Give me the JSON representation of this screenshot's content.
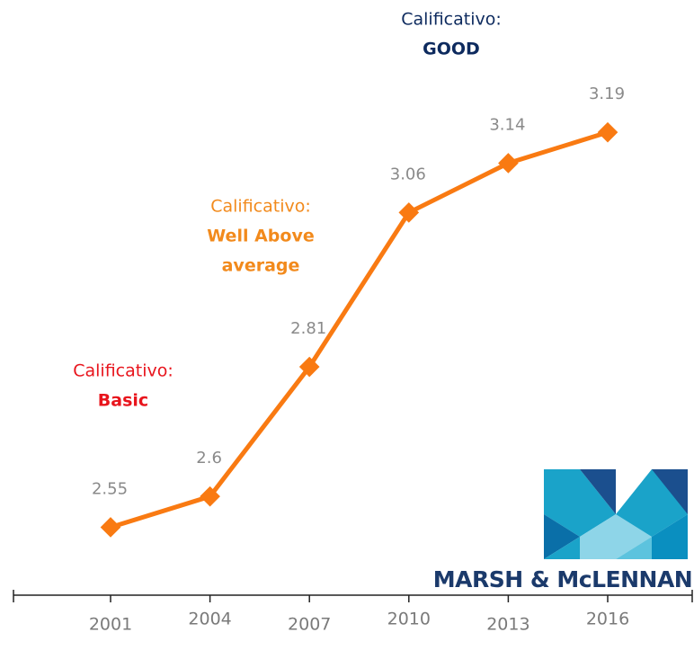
{
  "chart_data": {
    "type": "line",
    "categories": [
      "2001",
      "2004",
      "2007",
      "2010",
      "2013",
      "2016"
    ],
    "series": [
      {
        "name": null,
        "color": "#f97a12",
        "values": [
          2.55,
          2.6,
          2.81,
          3.06,
          3.14,
          3.19
        ]
      }
    ],
    "ylim": [
      2.44,
      3.4
    ],
    "annotations": [
      {
        "label": "Calificativo:",
        "value_lines": [
          "Basic"
        ],
        "color": "#e8141c"
      },
      {
        "label": "Calificativo:",
        "value_lines": [
          "Well Above",
          "average"
        ],
        "color": "#f28a1c"
      },
      {
        "label": "Calificativo:",
        "value_lines": [
          "GOOD"
        ],
        "color": "#0d2a5e"
      }
    ],
    "logo": "MARSH & McLENNAN"
  }
}
